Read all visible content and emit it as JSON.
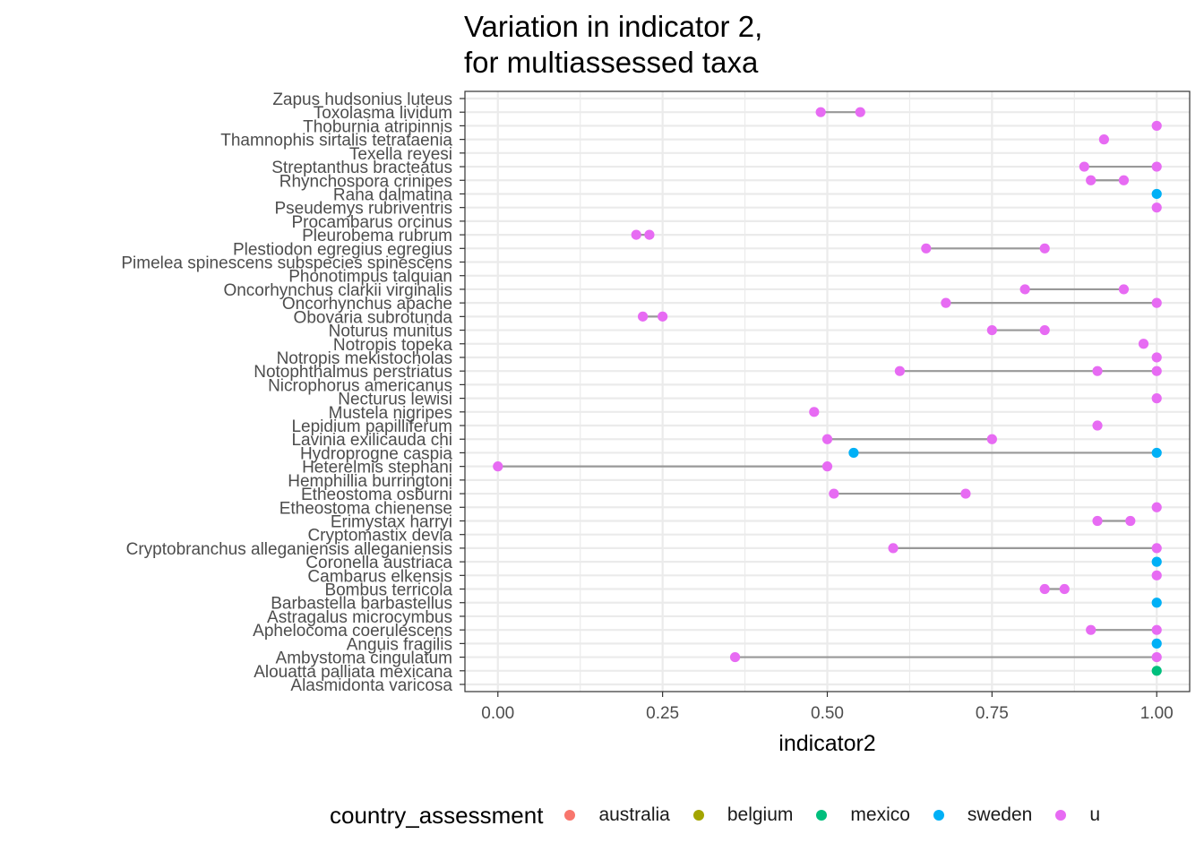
{
  "chart_data": {
    "type": "dumbbell",
    "title": "Variation in indicator 2,\nfor multiassessed taxa",
    "xlabel": "indicator2",
    "ylabel": "",
    "xlim": [
      -0.05,
      1.05
    ],
    "xticks": [
      0,
      0.25,
      0.5,
      0.75,
      1.0
    ],
    "xtick_labels": [
      "0.00",
      "0.25",
      "0.50",
      "0.75",
      "1.00"
    ],
    "grid": true,
    "legend": {
      "title": "country_assessment",
      "position": "bottom",
      "entries": [
        {
          "label": "australia",
          "color": "#F8766D"
        },
        {
          "label": "belgium",
          "color": "#A3A500"
        },
        {
          "label": "mexico",
          "color": "#00BF7D"
        },
        {
          "label": "sweden",
          "color": "#00B0F6"
        },
        {
          "label": "u",
          "color": "#E76BF3"
        }
      ]
    },
    "colors": {
      "segment": "#999999",
      "grid": "#ebebeb",
      "panel_border": "#333333"
    },
    "taxa": [
      {
        "name": "Zapus hudsonius luteus",
        "points": []
      },
      {
        "name": "Toxolasma lividum",
        "points": [
          {
            "x": 0.49,
            "c": "u"
          },
          {
            "x": 0.55,
            "c": "u"
          }
        ]
      },
      {
        "name": "Thoburnia atripinnis",
        "points": [
          {
            "x": 1.0,
            "c": "u"
          }
        ]
      },
      {
        "name": "Thamnophis sirtalis tetrataenia",
        "points": [
          {
            "x": 0.92,
            "c": "u"
          }
        ]
      },
      {
        "name": "Texella reyesi",
        "points": []
      },
      {
        "name": "Streptanthus bracteatus",
        "points": [
          {
            "x": 0.89,
            "c": "u"
          },
          {
            "x": 1.0,
            "c": "u"
          }
        ]
      },
      {
        "name": "Rhynchospora crinipes",
        "points": [
          {
            "x": 0.9,
            "c": "u"
          },
          {
            "x": 0.95,
            "c": "u"
          }
        ]
      },
      {
        "name": "Rana dalmatina",
        "points": [
          {
            "x": 1.0,
            "c": "sweden"
          }
        ]
      },
      {
        "name": "Pseudemys rubriventris",
        "points": [
          {
            "x": 1.0,
            "c": "u"
          }
        ]
      },
      {
        "name": "Procambarus orcinus",
        "points": []
      },
      {
        "name": "Pleurobema rubrum",
        "points": [
          {
            "x": 0.21,
            "c": "u"
          },
          {
            "x": 0.23,
            "c": "u"
          }
        ]
      },
      {
        "name": "Plestiodon egregius egregius",
        "points": [
          {
            "x": 0.65,
            "c": "u"
          },
          {
            "x": 0.83,
            "c": "u"
          }
        ]
      },
      {
        "name": "Pimelea spinescens subspecies spinescens",
        "points": []
      },
      {
        "name": "Phonotimpus talquian",
        "points": []
      },
      {
        "name": "Oncorhynchus clarkii virginalis",
        "points": [
          {
            "x": 0.8,
            "c": "u"
          },
          {
            "x": 0.95,
            "c": "u"
          }
        ]
      },
      {
        "name": "Oncorhynchus apache",
        "points": [
          {
            "x": 0.68,
            "c": "u"
          },
          {
            "x": 1.0,
            "c": "u"
          }
        ]
      },
      {
        "name": "Obovaria subrotunda",
        "points": [
          {
            "x": 0.22,
            "c": "u"
          },
          {
            "x": 0.25,
            "c": "u"
          }
        ]
      },
      {
        "name": "Noturus munitus",
        "points": [
          {
            "x": 0.75,
            "c": "u"
          },
          {
            "x": 0.83,
            "c": "u"
          }
        ]
      },
      {
        "name": "Notropis topeka",
        "points": [
          {
            "x": 0.98,
            "c": "u"
          }
        ]
      },
      {
        "name": "Notropis mekistocholas",
        "points": [
          {
            "x": 1.0,
            "c": "u"
          }
        ]
      },
      {
        "name": "Notophthalmus perstriatus",
        "points": [
          {
            "x": 0.61,
            "c": "u"
          },
          {
            "x": 0.91,
            "c": "u"
          },
          {
            "x": 1.0,
            "c": "u"
          }
        ]
      },
      {
        "name": "Nicrophorus americanus",
        "points": []
      },
      {
        "name": "Necturus lewisi",
        "points": [
          {
            "x": 1.0,
            "c": "u"
          }
        ]
      },
      {
        "name": "Mustela nigripes",
        "points": [
          {
            "x": 0.48,
            "c": "u"
          }
        ]
      },
      {
        "name": "Lepidium papilliferum",
        "points": [
          {
            "x": 0.91,
            "c": "u"
          }
        ]
      },
      {
        "name": "Lavinia exilicauda chi",
        "points": [
          {
            "x": 0.5,
            "c": "u"
          },
          {
            "x": 0.75,
            "c": "u"
          }
        ]
      },
      {
        "name": "Hydroprogne caspia",
        "points": [
          {
            "x": 0.54,
            "c": "sweden"
          },
          {
            "x": 1.0,
            "c": "sweden"
          }
        ]
      },
      {
        "name": "Heterelmis stephani",
        "points": [
          {
            "x": 0.0,
            "c": "u"
          },
          {
            "x": 0.5,
            "c": "u"
          }
        ]
      },
      {
        "name": "Hemphillia burringtoni",
        "points": []
      },
      {
        "name": "Etheostoma osburni",
        "points": [
          {
            "x": 0.51,
            "c": "u"
          },
          {
            "x": 0.71,
            "c": "u"
          }
        ]
      },
      {
        "name": "Etheostoma chienense",
        "points": [
          {
            "x": 1.0,
            "c": "u"
          }
        ]
      },
      {
        "name": "Erimystax harryi",
        "points": [
          {
            "x": 0.91,
            "c": "u"
          },
          {
            "x": 0.96,
            "c": "u"
          }
        ]
      },
      {
        "name": "Cryptomastix devia",
        "points": []
      },
      {
        "name": "Cryptobranchus alleganiensis alleganiensis",
        "points": [
          {
            "x": 0.6,
            "c": "u"
          },
          {
            "x": 1.0,
            "c": "u"
          }
        ]
      },
      {
        "name": "Coronella austriaca",
        "points": [
          {
            "x": 1.0,
            "c": "sweden"
          }
        ]
      },
      {
        "name": "Cambarus elkensis",
        "points": [
          {
            "x": 1.0,
            "c": "u"
          }
        ]
      },
      {
        "name": "Bombus terricola",
        "points": [
          {
            "x": 0.83,
            "c": "u"
          },
          {
            "x": 0.86,
            "c": "u"
          }
        ]
      },
      {
        "name": "Barbastella barbastellus",
        "points": [
          {
            "x": 1.0,
            "c": "sweden"
          }
        ]
      },
      {
        "name": "Astragalus microcymbus",
        "points": []
      },
      {
        "name": "Aphelocoma coerulescens",
        "points": [
          {
            "x": 0.9,
            "c": "u"
          },
          {
            "x": 1.0,
            "c": "u"
          }
        ]
      },
      {
        "name": "Anguis fragilis",
        "points": [
          {
            "x": 1.0,
            "c": "sweden"
          }
        ]
      },
      {
        "name": "Ambystoma cingulatum",
        "points": [
          {
            "x": 0.36,
            "c": "u"
          },
          {
            "x": 1.0,
            "c": "u"
          }
        ]
      },
      {
        "name": "Alouatta palliata mexicana",
        "points": [
          {
            "x": 1.0,
            "c": "mexico"
          }
        ]
      },
      {
        "name": "Alasmidonta varicosa",
        "points": []
      }
    ]
  }
}
